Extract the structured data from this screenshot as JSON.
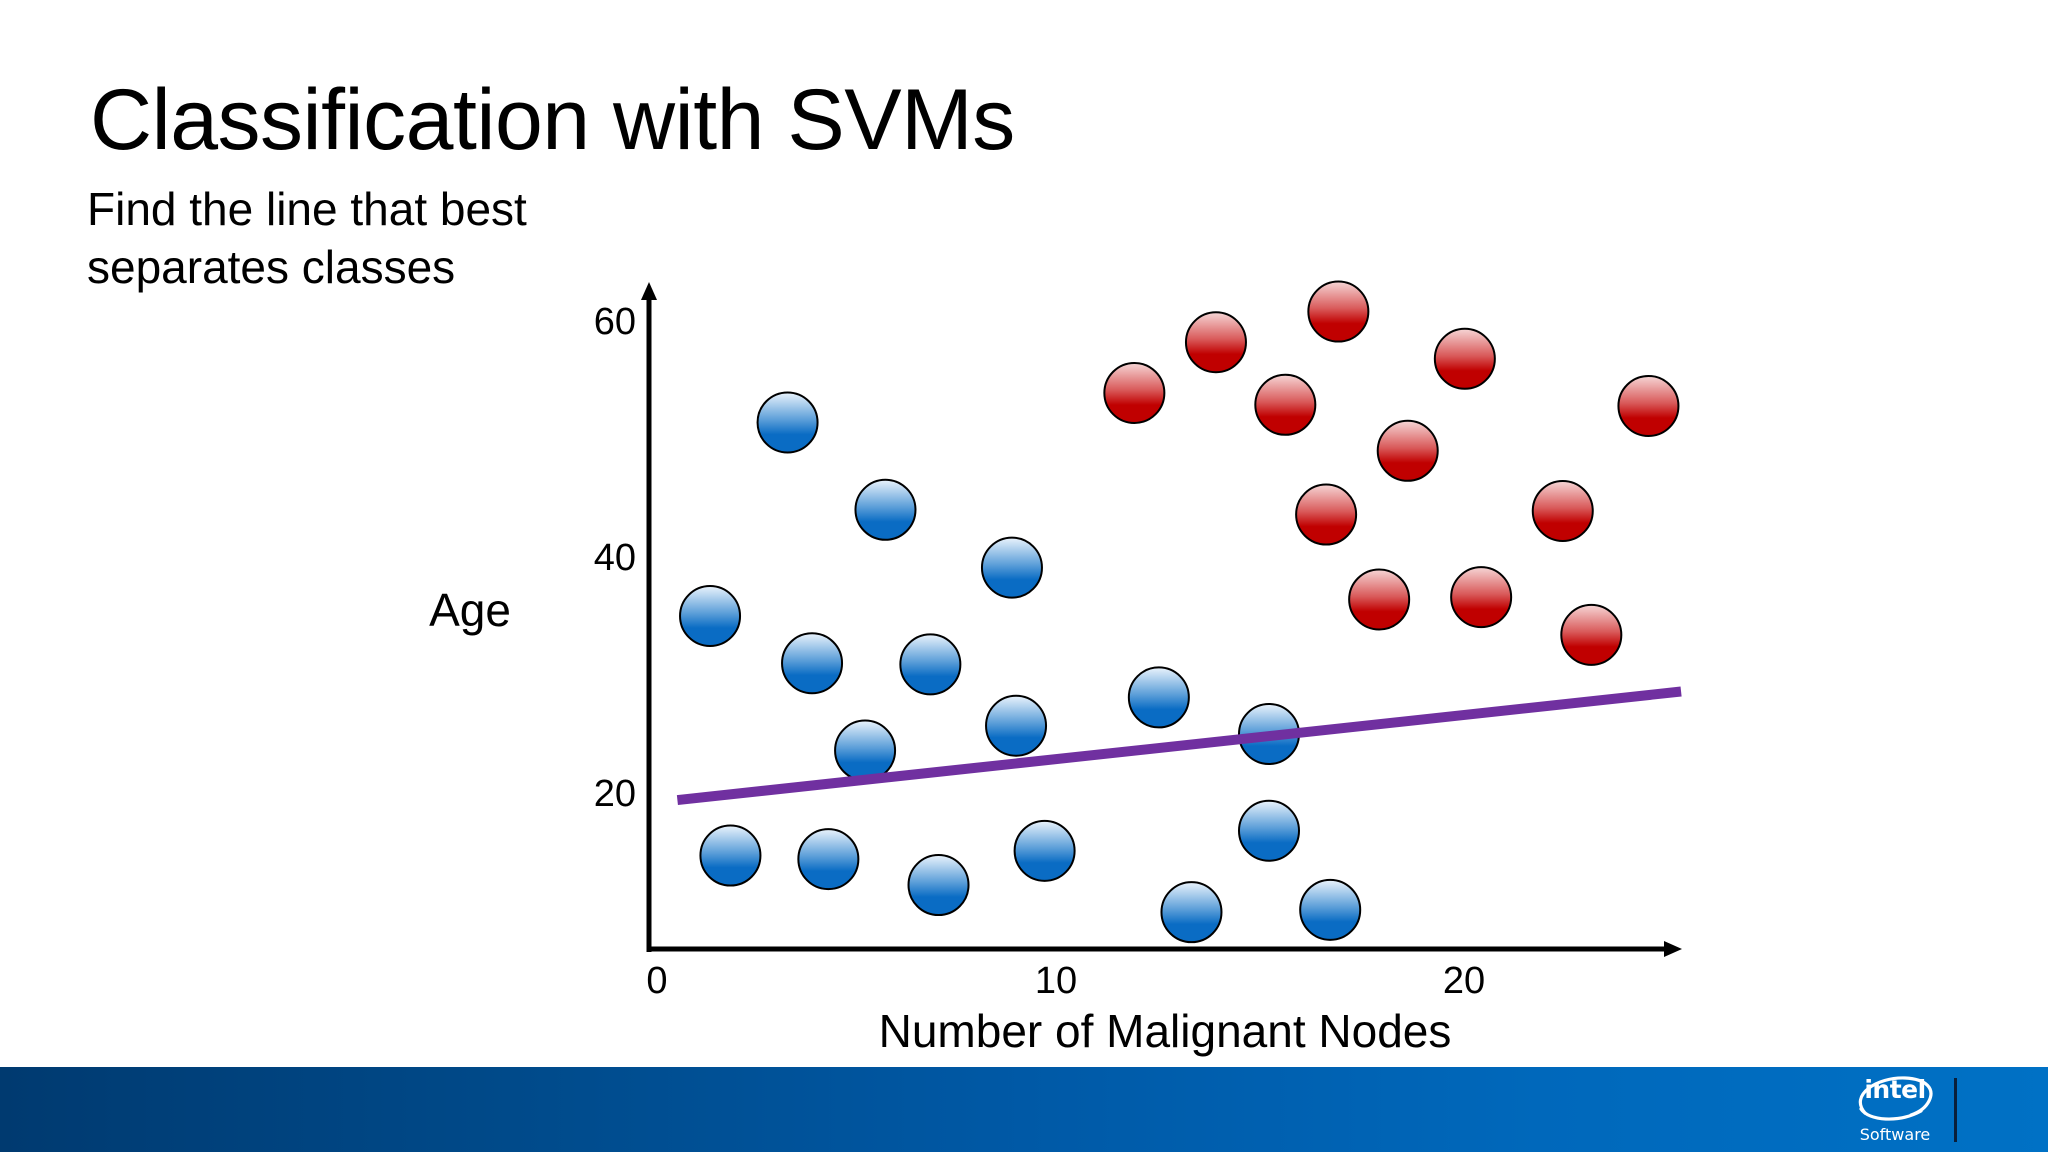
{
  "slide": {
    "title": "Classification with SVMs",
    "subtitle": "Find the line that best separates classes"
  },
  "footer": {
    "logo_text": "intel",
    "logo_subtext": "Software",
    "colors": {
      "gradient_start": "#003a70",
      "gradient_end": "#0071c5"
    }
  },
  "chart_data": {
    "type": "scatter",
    "title": "",
    "xlabel": "Number of Malignant Nodes",
    "ylabel": "Age",
    "x_ticks": [
      0,
      10,
      20
    ],
    "y_ticks": [
      20,
      40,
      60
    ],
    "xlim": [
      0,
      25.5
    ],
    "ylim": [
      6.5,
      64
    ],
    "grid": false,
    "legend": null,
    "series": [
      {
        "name": "Blue class",
        "color": "#0a6cc4",
        "color_light": "#e8f1fb",
        "points": [
          {
            "x": 3.2,
            "y": 51.4
          },
          {
            "x": 5.6,
            "y": 44.0
          },
          {
            "x": 8.7,
            "y": 39.1
          },
          {
            "x": 1.3,
            "y": 35.0
          },
          {
            "x": 3.8,
            "y": 31.0
          },
          {
            "x": 6.7,
            "y": 30.9
          },
          {
            "x": 5.1,
            "y": 23.6
          },
          {
            "x": 8.8,
            "y": 25.7
          },
          {
            "x": 12.3,
            "y": 28.1
          },
          {
            "x": 15.0,
            "y": 25.0
          },
          {
            "x": 1.8,
            "y": 14.7
          },
          {
            "x": 4.2,
            "y": 14.4
          },
          {
            "x": 6.9,
            "y": 12.2
          },
          {
            "x": 9.5,
            "y": 15.1
          },
          {
            "x": 13.1,
            "y": 9.9
          },
          {
            "x": 15.0,
            "y": 16.8
          },
          {
            "x": 16.5,
            "y": 10.1
          }
        ]
      },
      {
        "name": "Red class",
        "color": "#c00000",
        "color_light": "#f4d0d0",
        "points": [
          {
            "x": 11.7,
            "y": 53.9
          },
          {
            "x": 13.7,
            "y": 58.2
          },
          {
            "x": 16.7,
            "y": 60.8
          },
          {
            "x": 15.4,
            "y": 52.9
          },
          {
            "x": 19.8,
            "y": 56.8
          },
          {
            "x": 18.4,
            "y": 49.0
          },
          {
            "x": 16.4,
            "y": 43.6
          },
          {
            "x": 17.7,
            "y": 36.4
          },
          {
            "x": 20.2,
            "y": 36.6
          },
          {
            "x": 22.2,
            "y": 43.9
          },
          {
            "x": 22.9,
            "y": 33.4
          },
          {
            "x": 24.3,
            "y": 52.8
          }
        ]
      }
    ],
    "separator_line": {
      "color": "#7030a0",
      "from": {
        "x": 0.5,
        "y": 19.4
      },
      "to": {
        "x": 25.1,
        "y": 28.6
      }
    }
  }
}
